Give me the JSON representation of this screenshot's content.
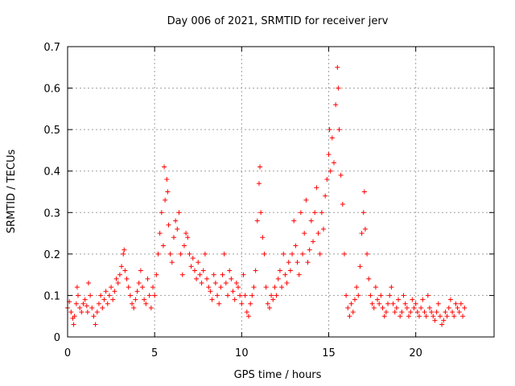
{
  "chart_data": {
    "type": "scatter",
    "title": "Day 006 of 2021, SRMTID for receiver jerv",
    "xlabel": "GPS time / hours",
    "ylabel": "SRMTID / TECUs",
    "xlim": [
      0,
      24.5
    ],
    "ylim": [
      0,
      0.7
    ],
    "xticks": [
      0,
      5,
      10,
      15,
      20
    ],
    "xtick_labels": [
      "0",
      "5",
      "10",
      "15",
      "20"
    ],
    "yticks": [
      0,
      0.1,
      0.2,
      0.3,
      0.4,
      0.5,
      0.6,
      0.7
    ],
    "ytick_labels": [
      "0",
      "0.1",
      "0.2",
      "0.3",
      "0.4",
      "0.5",
      "0.6",
      "0.7"
    ],
    "grid": true,
    "marker": "plus",
    "color": "#ff0000",
    "series": [
      {
        "name": "SRMTID",
        "points": [
          [
            0.0,
            0.07
          ],
          [
            0.1,
            0.085
          ],
          [
            0.2,
            0.06
          ],
          [
            0.3,
            0.045
          ],
          [
            0.35,
            0.03
          ],
          [
            0.4,
            0.05
          ],
          [
            0.5,
            0.08
          ],
          [
            0.55,
            0.12
          ],
          [
            0.6,
            0.1
          ],
          [
            0.7,
            0.07
          ],
          [
            0.8,
            0.06
          ],
          [
            0.9,
            0.08
          ],
          [
            1.0,
            0.09
          ],
          [
            1.1,
            0.075
          ],
          [
            1.15,
            0.06
          ],
          [
            1.2,
            0.13
          ],
          [
            1.3,
            0.1
          ],
          [
            1.4,
            0.07
          ],
          [
            1.5,
            0.05
          ],
          [
            1.6,
            0.03
          ],
          [
            1.7,
            0.06
          ],
          [
            1.8,
            0.08
          ],
          [
            1.9,
            0.1
          ],
          [
            2.0,
            0.07
          ],
          [
            2.1,
            0.09
          ],
          [
            2.2,
            0.11
          ],
          [
            2.3,
            0.08
          ],
          [
            2.4,
            0.1
          ],
          [
            2.5,
            0.12
          ],
          [
            2.6,
            0.09
          ],
          [
            2.7,
            0.11
          ],
          [
            2.8,
            0.14
          ],
          [
            2.9,
            0.13
          ],
          [
            3.0,
            0.15
          ],
          [
            3.1,
            0.17
          ],
          [
            3.2,
            0.2
          ],
          [
            3.25,
            0.21
          ],
          [
            3.3,
            0.16
          ],
          [
            3.4,
            0.14
          ],
          [
            3.5,
            0.12
          ],
          [
            3.6,
            0.1
          ],
          [
            3.7,
            0.08
          ],
          [
            3.8,
            0.07
          ],
          [
            3.9,
            0.09
          ],
          [
            4.0,
            0.11
          ],
          [
            4.1,
            0.13
          ],
          [
            4.2,
            0.16
          ],
          [
            4.3,
            0.12
          ],
          [
            4.4,
            0.09
          ],
          [
            4.5,
            0.08
          ],
          [
            4.6,
            0.14
          ],
          [
            4.7,
            0.1
          ],
          [
            4.8,
            0.07
          ],
          [
            4.9,
            0.12
          ],
          [
            5.0,
            0.1
          ],
          [
            5.1,
            0.15
          ],
          [
            5.2,
            0.2
          ],
          [
            5.3,
            0.25
          ],
          [
            5.4,
            0.3
          ],
          [
            5.5,
            0.22
          ],
          [
            5.55,
            0.41
          ],
          [
            5.6,
            0.33
          ],
          [
            5.7,
            0.38
          ],
          [
            5.75,
            0.35
          ],
          [
            5.8,
            0.27
          ],
          [
            5.9,
            0.2
          ],
          [
            6.0,
            0.18
          ],
          [
            6.1,
            0.24
          ],
          [
            6.2,
            0.28
          ],
          [
            6.3,
            0.26
          ],
          [
            6.4,
            0.3
          ],
          [
            6.5,
            0.2
          ],
          [
            6.6,
            0.15
          ],
          [
            6.7,
            0.22
          ],
          [
            6.8,
            0.25
          ],
          [
            6.9,
            0.24
          ],
          [
            7.0,
            0.2
          ],
          [
            7.1,
            0.17
          ],
          [
            7.2,
            0.19
          ],
          [
            7.3,
            0.16
          ],
          [
            7.4,
            0.14
          ],
          [
            7.5,
            0.18
          ],
          [
            7.6,
            0.15
          ],
          [
            7.7,
            0.13
          ],
          [
            7.8,
            0.16
          ],
          [
            7.9,
            0.2
          ],
          [
            8.0,
            0.14
          ],
          [
            8.1,
            0.12
          ],
          [
            8.2,
            0.11
          ],
          [
            8.3,
            0.09
          ],
          [
            8.4,
            0.15
          ],
          [
            8.5,
            0.13
          ],
          [
            8.6,
            0.1
          ],
          [
            8.7,
            0.08
          ],
          [
            8.8,
            0.12
          ],
          [
            8.9,
            0.15
          ],
          [
            9.0,
            0.2
          ],
          [
            9.1,
            0.13
          ],
          [
            9.2,
            0.1
          ],
          [
            9.3,
            0.16
          ],
          [
            9.4,
            0.14
          ],
          [
            9.5,
            0.11
          ],
          [
            9.6,
            0.09
          ],
          [
            9.7,
            0.13
          ],
          [
            9.8,
            0.12
          ],
          [
            9.9,
            0.1
          ],
          [
            10.0,
            0.08
          ],
          [
            10.1,
            0.15
          ],
          [
            10.2,
            0.1
          ],
          [
            10.3,
            0.06
          ],
          [
            10.4,
            0.05
          ],
          [
            10.5,
            0.08
          ],
          [
            10.6,
            0.1
          ],
          [
            10.7,
            0.12
          ],
          [
            10.8,
            0.16
          ],
          [
            10.9,
            0.28
          ],
          [
            11.0,
            0.37
          ],
          [
            11.05,
            0.41
          ],
          [
            11.1,
            0.3
          ],
          [
            11.2,
            0.24
          ],
          [
            11.3,
            0.2
          ],
          [
            11.4,
            0.12
          ],
          [
            11.5,
            0.08
          ],
          [
            11.6,
            0.07
          ],
          [
            11.7,
            0.1
          ],
          [
            11.8,
            0.09
          ],
          [
            11.9,
            0.12
          ],
          [
            12.0,
            0.1
          ],
          [
            12.1,
            0.14
          ],
          [
            12.2,
            0.16
          ],
          [
            12.3,
            0.12
          ],
          [
            12.4,
            0.2
          ],
          [
            12.5,
            0.15
          ],
          [
            12.6,
            0.13
          ],
          [
            12.7,
            0.18
          ],
          [
            12.8,
            0.16
          ],
          [
            12.9,
            0.2
          ],
          [
            13.0,
            0.28
          ],
          [
            13.1,
            0.22
          ],
          [
            13.2,
            0.18
          ],
          [
            13.3,
            0.15
          ],
          [
            13.4,
            0.3
          ],
          [
            13.5,
            0.2
          ],
          [
            13.6,
            0.25
          ],
          [
            13.7,
            0.33
          ],
          [
            13.8,
            0.18
          ],
          [
            13.9,
            0.21
          ],
          [
            14.0,
            0.28
          ],
          [
            14.1,
            0.23
          ],
          [
            14.2,
            0.3
          ],
          [
            14.3,
            0.36
          ],
          [
            14.4,
            0.25
          ],
          [
            14.5,
            0.2
          ],
          [
            14.6,
            0.3
          ],
          [
            14.7,
            0.26
          ],
          [
            14.8,
            0.34
          ],
          [
            14.9,
            0.38
          ],
          [
            15.0,
            0.44
          ],
          [
            15.05,
            0.5
          ],
          [
            15.1,
            0.4
          ],
          [
            15.2,
            0.48
          ],
          [
            15.3,
            0.42
          ],
          [
            15.4,
            0.56
          ],
          [
            15.5,
            0.65
          ],
          [
            15.55,
            0.6
          ],
          [
            15.6,
            0.5
          ],
          [
            15.7,
            0.39
          ],
          [
            15.8,
            0.32
          ],
          [
            15.9,
            0.2
          ],
          [
            16.0,
            0.1
          ],
          [
            16.1,
            0.07
          ],
          [
            16.2,
            0.05
          ],
          [
            16.3,
            0.08
          ],
          [
            16.4,
            0.06
          ],
          [
            16.5,
            0.09
          ],
          [
            16.6,
            0.12
          ],
          [
            16.7,
            0.1
          ],
          [
            16.8,
            0.17
          ],
          [
            16.9,
            0.25
          ],
          [
            17.0,
            0.3
          ],
          [
            17.05,
            0.35
          ],
          [
            17.1,
            0.26
          ],
          [
            17.2,
            0.2
          ],
          [
            17.3,
            0.14
          ],
          [
            17.4,
            0.1
          ],
          [
            17.5,
            0.08
          ],
          [
            17.6,
            0.07
          ],
          [
            17.7,
            0.12
          ],
          [
            17.8,
            0.09
          ],
          [
            17.9,
            0.08
          ],
          [
            18.0,
            0.1
          ],
          [
            18.1,
            0.07
          ],
          [
            18.2,
            0.05
          ],
          [
            18.3,
            0.06
          ],
          [
            18.4,
            0.08
          ],
          [
            18.5,
            0.1
          ],
          [
            18.6,
            0.12
          ],
          [
            18.7,
            0.08
          ],
          [
            18.8,
            0.06
          ],
          [
            18.9,
            0.07
          ],
          [
            19.0,
            0.09
          ],
          [
            19.1,
            0.05
          ],
          [
            19.2,
            0.06
          ],
          [
            19.3,
            0.1
          ],
          [
            19.4,
            0.08
          ],
          [
            19.5,
            0.07
          ],
          [
            19.6,
            0.05
          ],
          [
            19.7,
            0.06
          ],
          [
            19.8,
            0.09
          ],
          [
            19.9,
            0.07
          ],
          [
            20.0,
            0.08
          ],
          [
            20.1,
            0.06
          ],
          [
            20.2,
            0.05
          ],
          [
            20.3,
            0.07
          ],
          [
            20.4,
            0.09
          ],
          [
            20.5,
            0.06
          ],
          [
            20.6,
            0.05
          ],
          [
            20.7,
            0.1
          ],
          [
            20.8,
            0.07
          ],
          [
            20.9,
            0.06
          ],
          [
            21.0,
            0.05
          ],
          [
            21.1,
            0.04
          ],
          [
            21.2,
            0.06
          ],
          [
            21.3,
            0.08
          ],
          [
            21.4,
            0.05
          ],
          [
            21.5,
            0.03
          ],
          [
            21.6,
            0.04
          ],
          [
            21.7,
            0.06
          ],
          [
            21.8,
            0.05
          ],
          [
            21.9,
            0.07
          ],
          [
            22.0,
            0.09
          ],
          [
            22.1,
            0.06
          ],
          [
            22.2,
            0.05
          ],
          [
            22.3,
            0.08
          ],
          [
            22.4,
            0.07
          ],
          [
            22.5,
            0.06
          ],
          [
            22.6,
            0.08
          ],
          [
            22.7,
            0.05
          ],
          [
            22.8,
            0.07
          ]
        ]
      }
    ]
  }
}
